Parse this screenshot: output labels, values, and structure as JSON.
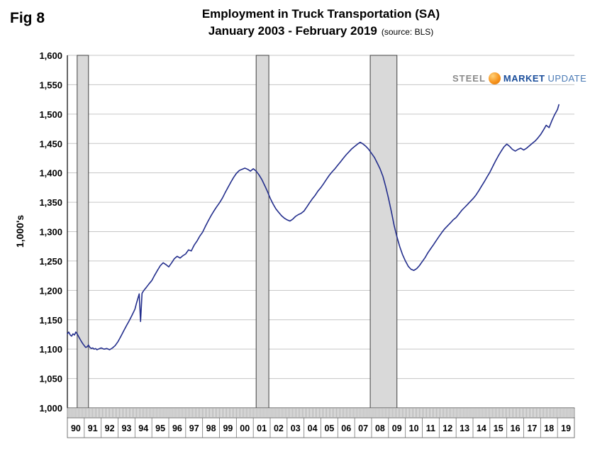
{
  "fig_label": "Fig 8",
  "title": {
    "line1": "Employment in Truck Transportation (SA)",
    "line2": "January 2003 - February 2019",
    "source": "(source: BLS)"
  },
  "y_axis_title": "1,000's",
  "logo": {
    "word1": "STEEL",
    "word2": "MARKET",
    "word3": "UPDATE"
  },
  "chart_data": {
    "type": "line",
    "title": "Employment in Truck Transportation (SA)",
    "subtitle": "January 2003 - February 2019",
    "source": "BLS",
    "ylabel": "1,000's",
    "ylim": [
      1000,
      1600
    ],
    "ytick_step": 50,
    "xlim": [
      1990,
      2020
    ],
    "grid": "horizontal",
    "legend": "none",
    "line_color": "#232e8c",
    "recession_band_color": "#d9d9d9",
    "recession_band_border": "#404040",
    "x_year_labels": [
      "90",
      "91",
      "92",
      "93",
      "94",
      "95",
      "96",
      "97",
      "98",
      "99",
      "00",
      "01",
      "02",
      "03",
      "04",
      "05",
      "06",
      "07",
      "08",
      "09",
      "10",
      "11",
      "12",
      "13",
      "14",
      "15",
      "16",
      "17",
      "18",
      "19"
    ],
    "recession_bands": [
      {
        "start": 1990.58,
        "end": 1991.25
      },
      {
        "start": 2001.17,
        "end": 2001.92
      },
      {
        "start": 2007.92,
        "end": 2009.5
      }
    ],
    "series": [
      {
        "name": "Employment in Truck Transportation (1,000's)",
        "points": [
          [
            1990.0,
            1126
          ],
          [
            1990.08,
            1129
          ],
          [
            1990.17,
            1124
          ],
          [
            1990.25,
            1122
          ],
          [
            1990.33,
            1126
          ],
          [
            1990.42,
            1124
          ],
          [
            1990.5,
            1129
          ],
          [
            1990.58,
            1126
          ],
          [
            1990.67,
            1121
          ],
          [
            1990.75,
            1117
          ],
          [
            1990.83,
            1113
          ],
          [
            1990.92,
            1109
          ],
          [
            1991.0,
            1106
          ],
          [
            1991.08,
            1103
          ],
          [
            1991.17,
            1104
          ],
          [
            1991.25,
            1107
          ],
          [
            1991.33,
            1103
          ],
          [
            1991.42,
            1101
          ],
          [
            1991.5,
            1102
          ],
          [
            1991.58,
            1100
          ],
          [
            1991.67,
            1101
          ],
          [
            1991.75,
            1099
          ],
          [
            1991.83,
            1100
          ],
          [
            1991.92,
            1101
          ],
          [
            1992.0,
            1102
          ],
          [
            1992.17,
            1100
          ],
          [
            1992.33,
            1101
          ],
          [
            1992.5,
            1099
          ],
          [
            1992.67,
            1102
          ],
          [
            1992.83,
            1106
          ],
          [
            1993.0,
            1113
          ],
          [
            1993.17,
            1122
          ],
          [
            1993.33,
            1131
          ],
          [
            1993.5,
            1140
          ],
          [
            1993.67,
            1149
          ],
          [
            1993.83,
            1158
          ],
          [
            1994.0,
            1168
          ],
          [
            1994.08,
            1177
          ],
          [
            1994.17,
            1186
          ],
          [
            1994.25,
            1194
          ],
          [
            1994.33,
            1147
          ],
          [
            1994.42,
            1195
          ],
          [
            1994.5,
            1199
          ],
          [
            1994.58,
            1202
          ],
          [
            1994.67,
            1205
          ],
          [
            1994.83,
            1211
          ],
          [
            1995.0,
            1217
          ],
          [
            1995.17,
            1226
          ],
          [
            1995.33,
            1234
          ],
          [
            1995.5,
            1242
          ],
          [
            1995.67,
            1247
          ],
          [
            1995.83,
            1244
          ],
          [
            1996.0,
            1240
          ],
          [
            1996.17,
            1247
          ],
          [
            1996.33,
            1254
          ],
          [
            1996.5,
            1258
          ],
          [
            1996.67,
            1255
          ],
          [
            1996.83,
            1259
          ],
          [
            1997.0,
            1262
          ],
          [
            1997.17,
            1269
          ],
          [
            1997.33,
            1267
          ],
          [
            1997.5,
            1277
          ],
          [
            1997.67,
            1284
          ],
          [
            1997.83,
            1292
          ],
          [
            1998.0,
            1299
          ],
          [
            1998.17,
            1309
          ],
          [
            1998.33,
            1318
          ],
          [
            1998.5,
            1327
          ],
          [
            1998.67,
            1335
          ],
          [
            1998.83,
            1342
          ],
          [
            1999.0,
            1349
          ],
          [
            1999.17,
            1357
          ],
          [
            1999.33,
            1366
          ],
          [
            1999.5,
            1375
          ],
          [
            1999.67,
            1384
          ],
          [
            1999.83,
            1392
          ],
          [
            2000.0,
            1399
          ],
          [
            2000.17,
            1404
          ],
          [
            2000.33,
            1406
          ],
          [
            2000.5,
            1408
          ],
          [
            2000.67,
            1406
          ],
          [
            2000.83,
            1403
          ],
          [
            2001.0,
            1407
          ],
          [
            2001.17,
            1403
          ],
          [
            2001.33,
            1397
          ],
          [
            2001.5,
            1389
          ],
          [
            2001.67,
            1379
          ],
          [
            2001.83,
            1369
          ],
          [
            2002.0,
            1357
          ],
          [
            2002.17,
            1347
          ],
          [
            2002.33,
            1339
          ],
          [
            2002.5,
            1333
          ],
          [
            2002.67,
            1327
          ],
          [
            2002.83,
            1323
          ],
          [
            2003.0,
            1320
          ],
          [
            2003.17,
            1318
          ],
          [
            2003.33,
            1321
          ],
          [
            2003.5,
            1326
          ],
          [
            2003.67,
            1329
          ],
          [
            2003.83,
            1331
          ],
          [
            2004.0,
            1335
          ],
          [
            2004.17,
            1342
          ],
          [
            2004.33,
            1349
          ],
          [
            2004.5,
            1356
          ],
          [
            2004.67,
            1362
          ],
          [
            2004.83,
            1369
          ],
          [
            2005.0,
            1375
          ],
          [
            2005.17,
            1382
          ],
          [
            2005.33,
            1389
          ],
          [
            2005.5,
            1396
          ],
          [
            2005.67,
            1402
          ],
          [
            2005.83,
            1407
          ],
          [
            2006.0,
            1413
          ],
          [
            2006.17,
            1419
          ],
          [
            2006.33,
            1425
          ],
          [
            2006.5,
            1431
          ],
          [
            2006.67,
            1436
          ],
          [
            2006.83,
            1441
          ],
          [
            2007.0,
            1445
          ],
          [
            2007.17,
            1449
          ],
          [
            2007.33,
            1452
          ],
          [
            2007.5,
            1449
          ],
          [
            2007.67,
            1445
          ],
          [
            2007.83,
            1440
          ],
          [
            2008.0,
            1433
          ],
          [
            2008.17,
            1426
          ],
          [
            2008.33,
            1417
          ],
          [
            2008.5,
            1407
          ],
          [
            2008.67,
            1394
          ],
          [
            2008.83,
            1377
          ],
          [
            2009.0,
            1357
          ],
          [
            2009.17,
            1334
          ],
          [
            2009.33,
            1311
          ],
          [
            2009.5,
            1291
          ],
          [
            2009.67,
            1274
          ],
          [
            2009.83,
            1261
          ],
          [
            2010.0,
            1250
          ],
          [
            2010.17,
            1241
          ],
          [
            2010.33,
            1236
          ],
          [
            2010.5,
            1234
          ],
          [
            2010.67,
            1237
          ],
          [
            2010.83,
            1242
          ],
          [
            2011.0,
            1249
          ],
          [
            2011.17,
            1256
          ],
          [
            2011.33,
            1264
          ],
          [
            2011.5,
            1271
          ],
          [
            2011.67,
            1278
          ],
          [
            2011.83,
            1285
          ],
          [
            2012.0,
            1292
          ],
          [
            2012.17,
            1299
          ],
          [
            2012.33,
            1305
          ],
          [
            2012.5,
            1310
          ],
          [
            2012.67,
            1315
          ],
          [
            2012.83,
            1320
          ],
          [
            2013.0,
            1324
          ],
          [
            2013.17,
            1330
          ],
          [
            2013.33,
            1336
          ],
          [
            2013.5,
            1341
          ],
          [
            2013.67,
            1346
          ],
          [
            2013.83,
            1351
          ],
          [
            2014.0,
            1356
          ],
          [
            2014.17,
            1362
          ],
          [
            2014.33,
            1369
          ],
          [
            2014.5,
            1377
          ],
          [
            2014.67,
            1385
          ],
          [
            2014.83,
            1393
          ],
          [
            2015.0,
            1401
          ],
          [
            2015.17,
            1411
          ],
          [
            2015.33,
            1420
          ],
          [
            2015.5,
            1429
          ],
          [
            2015.67,
            1437
          ],
          [
            2015.83,
            1444
          ],
          [
            2016.0,
            1449
          ],
          [
            2016.17,
            1445
          ],
          [
            2016.33,
            1440
          ],
          [
            2016.5,
            1437
          ],
          [
            2016.67,
            1440
          ],
          [
            2016.83,
            1442
          ],
          [
            2017.0,
            1439
          ],
          [
            2017.17,
            1442
          ],
          [
            2017.33,
            1446
          ],
          [
            2017.5,
            1450
          ],
          [
            2017.67,
            1454
          ],
          [
            2017.83,
            1459
          ],
          [
            2018.0,
            1465
          ],
          [
            2018.17,
            1473
          ],
          [
            2018.33,
            1481
          ],
          [
            2018.5,
            1477
          ],
          [
            2018.67,
            1489
          ],
          [
            2018.83,
            1499
          ],
          [
            2019.0,
            1508
          ],
          [
            2019.08,
            1516
          ]
        ]
      }
    ]
  }
}
